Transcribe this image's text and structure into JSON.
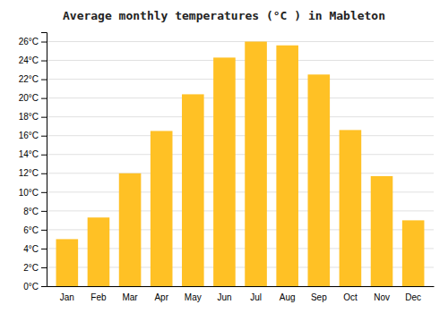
{
  "chart_data": {
    "type": "bar",
    "title": "Average monthly temperatures (°C ) in Mableton",
    "categories": [
      "Jan",
      "Feb",
      "Mar",
      "Apr",
      "May",
      "Jun",
      "Jul",
      "Aug",
      "Sep",
      "Oct",
      "Nov",
      "Dec"
    ],
    "values": [
      5.0,
      7.3,
      12.0,
      16.5,
      20.4,
      24.3,
      26.0,
      25.6,
      22.5,
      16.6,
      11.7,
      7.0
    ],
    "color": "#FFC125",
    "ylim": [
      0,
      27
    ],
    "yticks": [
      {
        "value": 0,
        "label": "0°C"
      },
      {
        "value": 2,
        "label": "2°C"
      },
      {
        "value": 4,
        "label": "4°C"
      },
      {
        "value": 6,
        "label": "6°C"
      },
      {
        "value": 8,
        "label": "8°C"
      },
      {
        "value": 10,
        "label": "10°C"
      },
      {
        "value": 12,
        "label": "12°C"
      },
      {
        "value": 14,
        "label": "14°C"
      },
      {
        "value": 16,
        "label": "16°C"
      },
      {
        "value": 18,
        "label": "18°C"
      },
      {
        "value": 20,
        "label": "20°C"
      },
      {
        "value": 22,
        "label": "22°C"
      },
      {
        "value": 24,
        "label": "24°C"
      },
      {
        "value": 26,
        "label": "26°C"
      }
    ],
    "grid": true
  }
}
